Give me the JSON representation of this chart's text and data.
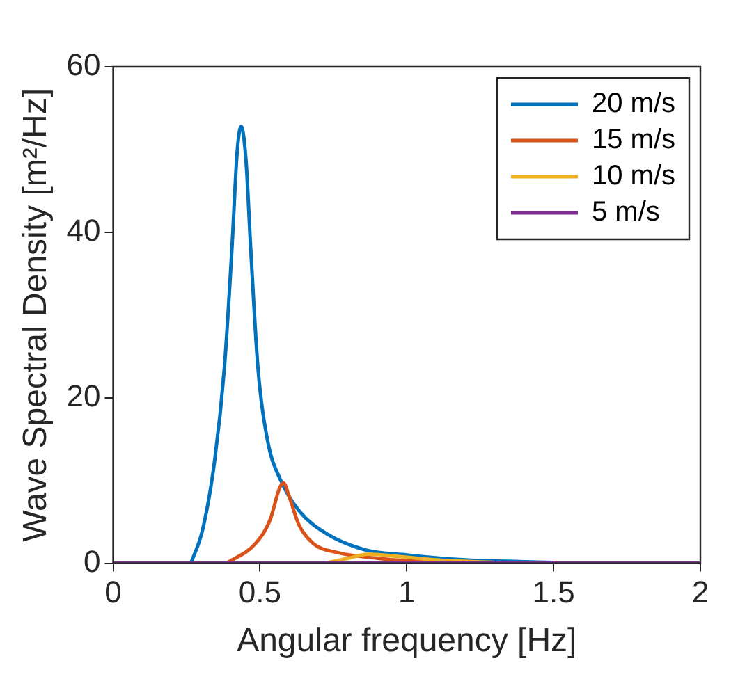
{
  "chart_data": {
    "type": "line",
    "xlabel": "Angular frequency [Hz]",
    "ylabel": "Wave Spectral Density [m²/Hz]",
    "xlim": [
      0,
      2
    ],
    "ylim": [
      0,
      60
    ],
    "xticks": [
      0,
      0.5,
      1,
      1.5,
      2
    ],
    "yticks": [
      0,
      20,
      40,
      60
    ],
    "grid": false,
    "legend": "top right",
    "marker": "none",
    "line_style": "solid",
    "series": [
      {
        "name": "20 m/s",
        "color": "#0072bd",
        "x": [
          0.265,
          0.305,
          0.346,
          0.379,
          0.404,
          0.423,
          0.436,
          0.452,
          0.469,
          0.493,
          0.526,
          0.567,
          0.632,
          0.73,
          0.861,
          1.0,
          1.2,
          1.5
        ],
        "values": [
          0,
          4.1,
          12.5,
          23.7,
          37.7,
          50,
          52.8,
          48.9,
          37.7,
          23.7,
          14.8,
          10.3,
          6.4,
          3.5,
          1.6,
          1.0,
          0.4,
          0.1
        ]
      },
      {
        "name": "15 m/s",
        "color": "#d95319",
        "x": [
          0.387,
          0.485,
          0.534,
          0.567,
          0.58,
          0.6,
          0.632,
          0.681,
          0.763,
          0.9,
          1.0,
          1.3
        ],
        "values": [
          0,
          2.4,
          5.2,
          9.1,
          9.7,
          8,
          4.7,
          2.4,
          1.3,
          0.6,
          0.3,
          0.1
        ]
      },
      {
        "name": "10 m/s",
        "color": "#edb120",
        "x": [
          0.72,
          0.8,
          0.87,
          0.95,
          1.1,
          1.3
        ],
        "values": [
          0,
          0.6,
          1.1,
          0.9,
          0.4,
          0.1
        ]
      },
      {
        "name": "5 m/s",
        "color": "#7e2f8e",
        "x": [
          0,
          2
        ],
        "values": [
          0,
          0
        ]
      }
    ]
  }
}
